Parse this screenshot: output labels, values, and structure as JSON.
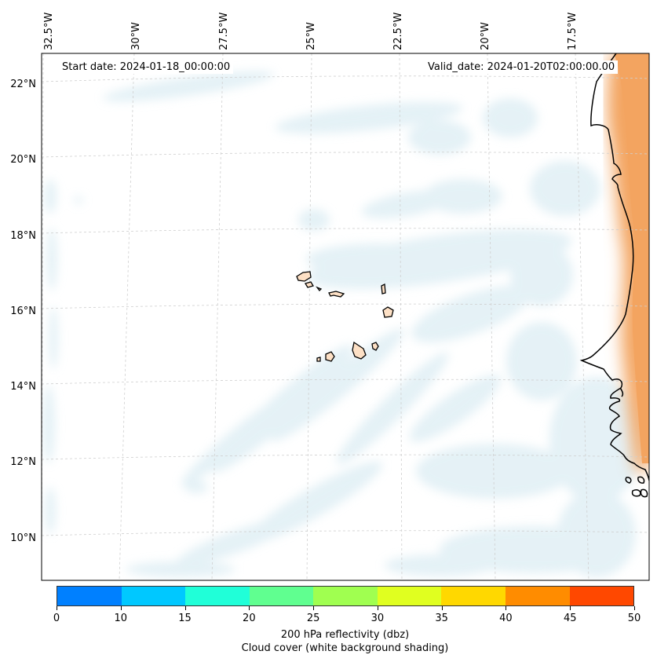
{
  "map": {
    "start_date": "Start date: 2024-01-18_00:00:00",
    "valid_date": "Valid_date: 2024-01-20T02:00:00.00",
    "longitude_labels": [
      "32.5°W",
      "30°W",
      "27.5°W",
      "25°W",
      "22.5°W",
      "20°W",
      "17.5°W"
    ],
    "latitude_labels": [
      "22°N",
      "20°N",
      "18°N",
      "16°N",
      "14°N",
      "12°N",
      "10°N"
    ],
    "features": [
      "cloud-cover-shading",
      "cape-verde-islands",
      "west-africa-coastline",
      "reflectivity-shading"
    ]
  },
  "colorbar": {
    "ticks": [
      "0",
      "10",
      "15",
      "20",
      "25",
      "30",
      "35",
      "40",
      "45",
      "50"
    ],
    "colors": [
      "#0080ff",
      "#00c8ff",
      "#20ffd8",
      "#60ff90",
      "#a0ff50",
      "#e0ff20",
      "#ffd800",
      "#ff8c00",
      "#ff4800"
    ],
    "title_line1": "200 hPa reflectivity (dbz)",
    "title_line2": "Cloud cover (white background shading)"
  }
}
